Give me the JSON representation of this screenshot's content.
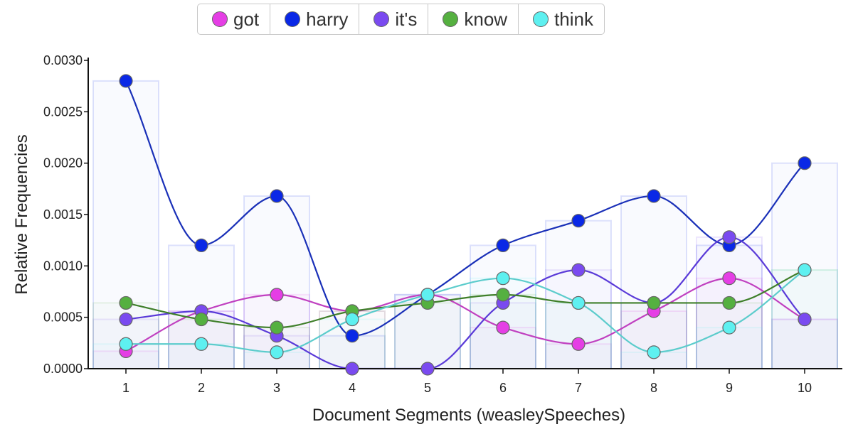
{
  "chart_data": {
    "type": "line",
    "xlabel": "Document Segments (weasleySpeeches)",
    "ylabel": "Relative Frequencies",
    "ylim": [
      0,
      0.003
    ],
    "y_ticks": [
      "0.0000",
      "0.0005",
      "0.0010",
      "0.0015",
      "0.0020",
      "0.0025",
      "0.0030"
    ],
    "x": [
      "1",
      "2",
      "3",
      "4",
      "5",
      "6",
      "7",
      "8",
      "9",
      "10"
    ],
    "series": [
      {
        "name": "got",
        "color": "#e53ee5",
        "line_color": "#c040c0",
        "values": [
          0.00017,
          0.00056,
          0.00072,
          0.00056,
          0.00072,
          0.0004,
          0.00024,
          0.00056,
          0.00088,
          0.00048
        ]
      },
      {
        "name": "harry",
        "color": "#0a28e6",
        "line_color": "#1a30b8",
        "values": [
          0.0028,
          0.0012,
          0.00168,
          0.00032,
          0.00072,
          0.0012,
          0.00144,
          0.00168,
          0.0012,
          0.002
        ]
      },
      {
        "name": "it's",
        "color": "#7a4af0",
        "line_color": "#5a3ad8",
        "values": [
          0.00048,
          0.00056,
          0.00032,
          0.0,
          0.0,
          0.00064,
          0.00096,
          0.00064,
          0.00128,
          0.00048
        ]
      },
      {
        "name": "know",
        "color": "#55b040",
        "line_color": "#3f7f2a",
        "values": [
          0.00064,
          0.00048,
          0.0004,
          0.00056,
          0.00064,
          0.00072,
          0.00064,
          0.00064,
          0.00064,
          0.00096
        ]
      },
      {
        "name": "think",
        "color": "#5ef0f0",
        "line_color": "#5ccccc",
        "values": [
          0.00024,
          0.00024,
          0.00016,
          0.00048,
          0.00072,
          0.00088,
          0.00064,
          0.00016,
          0.0004,
          0.00096
        ]
      }
    ]
  }
}
